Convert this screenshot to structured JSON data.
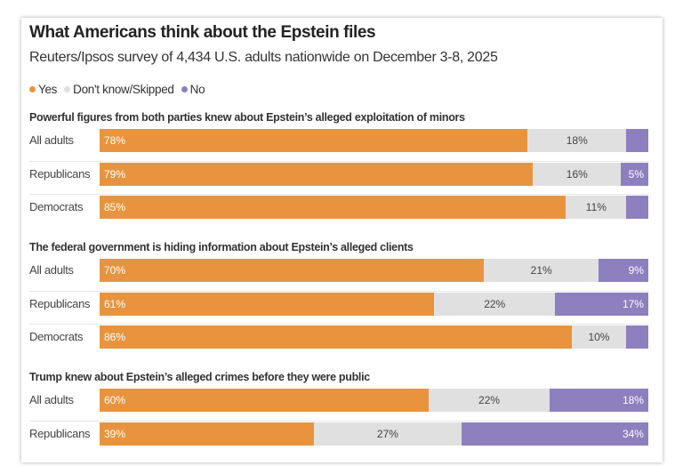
{
  "chart_data": {
    "type": "bar",
    "orientation": "horizontal",
    "stacked": true,
    "title": "What Americans think about the Epstein files",
    "subtitle": "Reuters/Ipsos survey of 4,434 U.S. adults nationwide on December 3-8, 2025",
    "legend": {
      "placement": "top-left",
      "entries": [
        "Yes",
        "Don't know/Skipped",
        "No"
      ]
    },
    "series_colors": {
      "Yes": "#e8943f",
      "Don't know/Skipped": "#e0e0e0",
      "No": "#8e7fbf"
    },
    "xlim": [
      0,
      100
    ],
    "groups": [
      {
        "title": "Powerful figures from both parties knew about Epstein’s alleged exploitation of minors",
        "rows": [
          {
            "label": "All adults",
            "yes": 78,
            "dk": 18,
            "no": 4,
            "no_labeled": false
          },
          {
            "label": "Republicans",
            "yes": 79,
            "dk": 16,
            "no": 5,
            "no_labeled": true
          },
          {
            "label": "Democrats",
            "yes": 85,
            "dk": 11,
            "no": 4,
            "no_labeled": false
          }
        ]
      },
      {
        "title": "The federal government is hiding information about Epstein’s alleged clients",
        "rows": [
          {
            "label": "All adults",
            "yes": 70,
            "dk": 21,
            "no": 9,
            "no_labeled": true
          },
          {
            "label": "Republicans",
            "yes": 61,
            "dk": 22,
            "no": 17,
            "no_labeled": true
          },
          {
            "label": "Democrats",
            "yes": 86,
            "dk": 10,
            "no": 4,
            "no_labeled": false
          }
        ]
      },
      {
        "title": "Trump knew about Epstein’s alleged crimes before they were public",
        "rows": [
          {
            "label": "All adults",
            "yes": 60,
            "dk": 22,
            "no": 18,
            "no_labeled": true
          },
          {
            "label": "Republicans",
            "yes": 39,
            "dk": 27,
            "no": 34,
            "no_labeled": true
          }
        ]
      }
    ]
  }
}
